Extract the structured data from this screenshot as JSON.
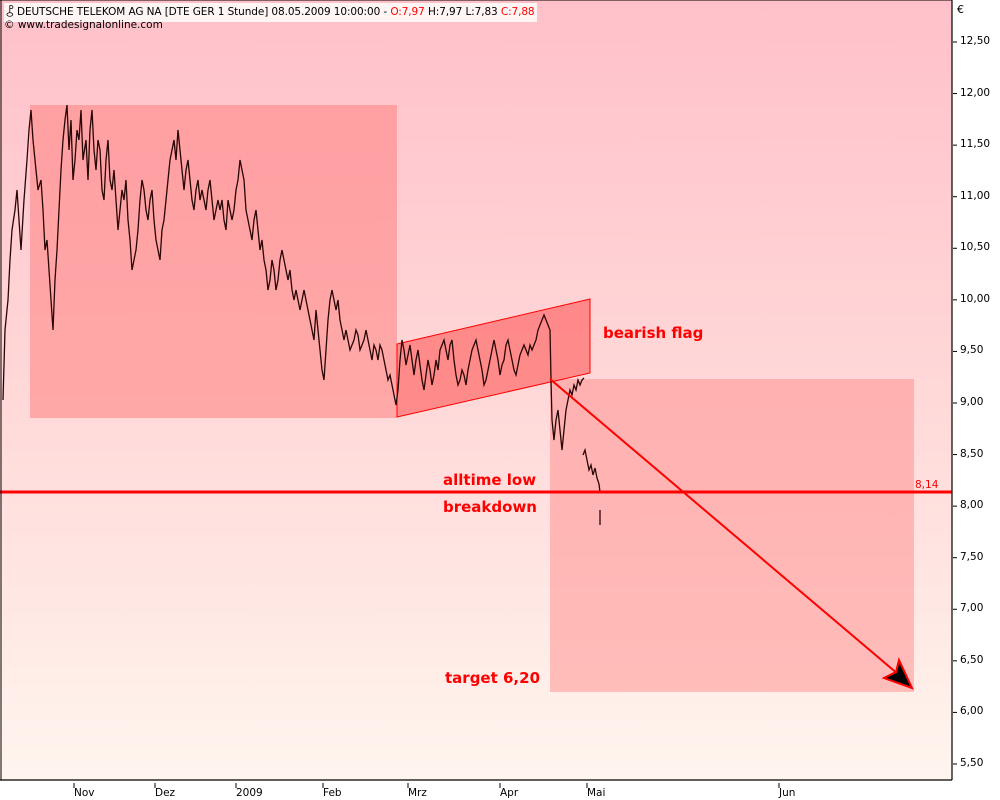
{
  "header": {
    "symbol_icon": "candlestick-icon",
    "instrument": "DEUTSCHE TELEKOM AG NA [DTE GER  1 Stunde] 08.05.2009 10:00:00 - ",
    "open_label": "O:7,97",
    "high_label": "H:7,97",
    "low_label": "L:7,83",
    "close_label": "C:7,88",
    "copyright": "© www.tradesignalonline.com"
  },
  "axis": {
    "currency": "€",
    "y_ticks": [
      "12,50",
      "12,00",
      "11,50",
      "11,00",
      "10,50",
      "10,00",
      "9,50",
      "9,00",
      "8,50",
      "8,00",
      "7,50",
      "7,00",
      "6,50",
      "6,00",
      "5,50"
    ],
    "x_ticks": [
      "Nov",
      "Dez",
      "2009",
      "Feb",
      "Mrz",
      "Apr",
      "Mai",
      "Jun"
    ]
  },
  "annotations": {
    "bearish_flag": "bearish flag",
    "alltime_low": "alltime low",
    "breakdown": "breakdown",
    "target": "target 6,20",
    "level_label": "8,14"
  },
  "colors": {
    "accent_red": "#ff0000",
    "price_line": "#2a0505",
    "zone_fill": "#ff8080",
    "bg_top": "#ffc0c8",
    "bg_bottom": "#fff5ee"
  },
  "chart_data": {
    "type": "line",
    "title": "DEUTSCHE TELEKOM AG NA [DTE GER 1 Stunde] 08.05.2009 10:00:00",
    "subtitle": "O:7,97 H:7,97 L:7,83 C:7,88",
    "xlabel": "",
    "ylabel": "€",
    "ylim": [
      5.5,
      12.5
    ],
    "x_categories": [
      "Nov",
      "Dez",
      "2009",
      "Feb",
      "Mrz",
      "Apr",
      "Mai",
      "Jun"
    ],
    "grid": false,
    "series": [
      {
        "name": "DTE hourly close (approx.)",
        "points": [
          [
            "Oct-15",
            9.0
          ],
          [
            "Oct-20",
            10.2
          ],
          [
            "Oct-24",
            11.7
          ],
          [
            "Oct-29",
            10.8
          ],
          [
            "Nov-01",
            9.6
          ],
          [
            "Nov-05",
            11.8
          ],
          [
            "Nov-10",
            11.4
          ],
          [
            "Nov-14",
            11.8
          ],
          [
            "Nov-20",
            11.1
          ],
          [
            "Nov-25",
            10.5
          ],
          [
            "Dec-01",
            10.3
          ],
          [
            "Dec-05",
            11.3
          ],
          [
            "Dec-10",
            10.4
          ],
          [
            "Dec-15",
            11.1
          ],
          [
            "Dec-20",
            10.9
          ],
          [
            "Jan-02",
            11.2
          ],
          [
            "Jan-06",
            11.4
          ],
          [
            "Jan-12",
            10.6
          ],
          [
            "Jan-18",
            10.2
          ],
          [
            "Jan-22",
            10.0
          ],
          [
            "Jan-26",
            9.3
          ],
          [
            "Feb-02",
            10.0
          ],
          [
            "Feb-10",
            9.6
          ],
          [
            "Feb-18",
            9.5
          ],
          [
            "Feb-25",
            8.9
          ],
          [
            "Mar-02",
            9.6
          ],
          [
            "Mar-10",
            9.1
          ],
          [
            "Mar-18",
            9.6
          ],
          [
            "Mar-25",
            9.2
          ],
          [
            "Apr-01",
            9.6
          ],
          [
            "Apr-08",
            9.4
          ],
          [
            "Apr-15",
            9.5
          ],
          [
            "Apr-20",
            9.85
          ],
          [
            "Apr-23",
            8.7
          ],
          [
            "Apr-28",
            9.2
          ],
          [
            "May-04",
            8.5
          ],
          [
            "May-07",
            8.2
          ],
          [
            "May-08",
            7.88
          ]
        ]
      },
      {
        "name": "alltime low line",
        "type": "hline",
        "value": 8.14
      }
    ],
    "shapes": [
      {
        "name": "prior range box",
        "x": [
          "Oct-24",
          "Feb-28"
        ],
        "y": [
          8.87,
          11.9
        ]
      },
      {
        "name": "bearish flag channel",
        "lower": [
          [
            "Feb-28",
            8.87
          ],
          [
            "Apr-20",
            9.25
          ],
          [
            "Apr-30",
            9.3
          ]
        ],
        "upper": [
          [
            "Feb-28",
            9.6
          ],
          [
            "Apr-30",
            10.02
          ]
        ]
      },
      {
        "name": "target projection box",
        "x": [
          "Apr-20",
          "Jun-30"
        ],
        "y": [
          6.2,
          9.25
        ]
      },
      {
        "name": "target arrow",
        "from": [
          "Apr-20",
          9.25
        ],
        "to": [
          "Jun-30",
          6.25
        ]
      }
    ],
    "annotations": [
      "bearish flag",
      "alltime low",
      "breakdown",
      "target 6,20",
      "8,14"
    ],
    "legend": "none"
  }
}
